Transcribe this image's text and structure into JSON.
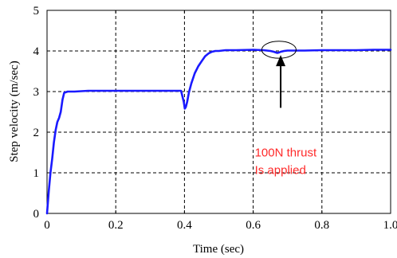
{
  "chart_data": {
    "type": "line",
    "title": "",
    "xlabel": "Time (sec)",
    "ylabel": "Step velocity (m/sec)",
    "xlim": [
      0,
      1.0
    ],
    "ylim": [
      0,
      5
    ],
    "x_ticks": [
      {
        "value": 0,
        "label": "0"
      },
      {
        "value": 0.2,
        "label": "0.2"
      },
      {
        "value": 0.4,
        "label": "0.4"
      },
      {
        "value": 0.6,
        "label": "0.6"
      },
      {
        "value": 0.8,
        "label": "0.8"
      },
      {
        "value": 1.0,
        "label": "1.0"
      }
    ],
    "y_ticks": [
      {
        "value": 0,
        "label": "0"
      },
      {
        "value": 1,
        "label": "1"
      },
      {
        "value": 2,
        "label": "2"
      },
      {
        "value": 3,
        "label": "3"
      },
      {
        "value": 4,
        "label": "4"
      },
      {
        "value": 5,
        "label": "5"
      }
    ],
    "grid": true,
    "series": [
      {
        "color": "#1a1aff",
        "x": [
          0.0,
          0.005,
          0.01,
          0.015,
          0.02,
          0.025,
          0.03,
          0.035,
          0.04,
          0.045,
          0.05,
          0.06,
          0.08,
          0.12,
          0.2,
          0.3,
          0.39,
          0.398,
          0.401,
          0.404,
          0.408,
          0.413,
          0.42,
          0.43,
          0.44,
          0.45,
          0.46,
          0.47,
          0.48,
          0.49,
          0.5,
          0.52,
          0.55,
          0.6,
          0.63,
          0.65,
          0.66,
          0.67,
          0.675,
          0.68,
          0.69,
          0.7,
          0.75,
          0.8,
          0.9,
          0.95,
          1.0
        ],
        "y": [
          0.0,
          0.55,
          1.0,
          1.35,
          1.75,
          2.05,
          2.25,
          2.35,
          2.5,
          2.8,
          2.97,
          3.0,
          3.0,
          3.02,
          3.02,
          3.02,
          3.02,
          2.75,
          2.58,
          2.62,
          2.75,
          2.98,
          3.2,
          3.45,
          3.62,
          3.75,
          3.87,
          3.94,
          3.98,
          4.0,
          4.0,
          4.02,
          4.02,
          4.03,
          4.02,
          4.0,
          3.98,
          3.95,
          3.96,
          3.98,
          4.0,
          4.01,
          4.01,
          4.02,
          4.02,
          4.03,
          4.03
        ]
      }
    ],
    "annotation": {
      "text_lines": [
        "100N thrust",
        "Is applied"
      ],
      "text_color": "#ff2a2a",
      "text_anchor": {
        "x": 0.6,
        "y": 1.4
      },
      "arrow_from": {
        "x": 0.68,
        "y": 2.6
      },
      "arrow_to": {
        "x": 0.68,
        "y": 3.9
      },
      "ellipse_center": {
        "x": 0.675,
        "y": 4.03
      },
      "ellipse_rx": 0.05,
      "ellipse_ry": 0.21
    }
  }
}
